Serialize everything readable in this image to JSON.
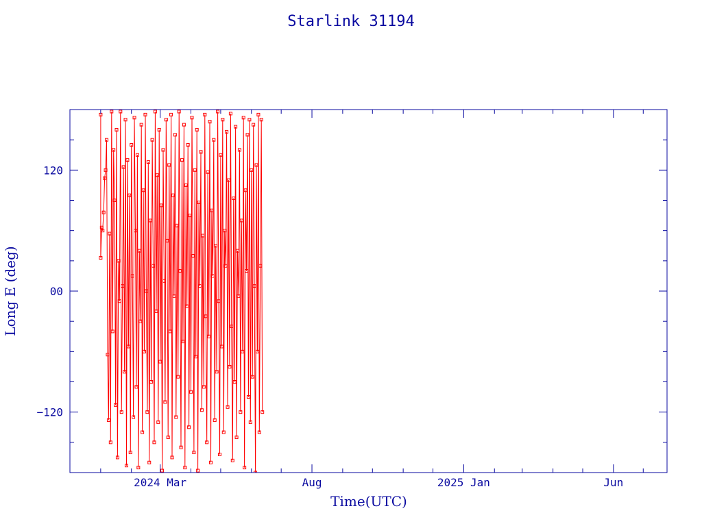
{
  "chart_data": {
    "type": "line",
    "title": "Starlink 31194",
    "xlabel": "Time(UTC)",
    "ylabel": "Long E (deg)",
    "x_ticks": [
      {
        "date": "2024-03-01",
        "label": "2024 Mar"
      },
      {
        "date": "2024-08-01",
        "label": "Aug"
      },
      {
        "date": "2025-01-01",
        "label": "2025 Jan"
      },
      {
        "date": "2025-06-01",
        "label": "Jun"
      }
    ],
    "y_ticks": [
      {
        "value": 120,
        "label": "120"
      },
      {
        "value": 0,
        "label": "00"
      },
      {
        "value": -120,
        "label": "−120"
      }
    ],
    "xlim": [
      "2023-12-01",
      "2025-07-25"
    ],
    "ylim": [
      -180,
      180
    ],
    "grid": false,
    "series": [
      {
        "marker": "square",
        "color": "#ff0000",
        "points": [
          {
            "x": "2024-01-01",
            "y": 175
          },
          {
            "x": "2024-01-01",
            "y": 33
          },
          {
            "x": "2024-01-02",
            "y": 63
          },
          {
            "x": "2024-01-03",
            "y": 60
          },
          {
            "x": "2024-01-04",
            "y": 78
          },
          {
            "x": "2024-01-05",
            "y": 112
          },
          {
            "x": "2024-01-06",
            "y": 120
          },
          {
            "x": "2024-01-07",
            "y": 150
          },
          {
            "x": "2024-01-08",
            "y": -63
          },
          {
            "x": "2024-01-09",
            "y": -128
          },
          {
            "x": "2024-01-10",
            "y": 57
          },
          {
            "x": "2024-01-11",
            "y": -150
          },
          {
            "x": "2024-01-12",
            "y": 178
          },
          {
            "x": "2024-01-13",
            "y": -40
          },
          {
            "x": "2024-01-14",
            "y": 140
          },
          {
            "x": "2024-01-15",
            "y": 90
          },
          {
            "x": "2024-01-16",
            "y": -113
          },
          {
            "x": "2024-01-17",
            "y": 160
          },
          {
            "x": "2024-01-18",
            "y": -165
          },
          {
            "x": "2024-01-19",
            "y": 30
          },
          {
            "x": "2024-01-20",
            "y": -10
          },
          {
            "x": "2024-01-21",
            "y": 178
          },
          {
            "x": "2024-01-22",
            "y": -120
          },
          {
            "x": "2024-01-23",
            "y": 5
          },
          {
            "x": "2024-01-24",
            "y": 123
          },
          {
            "x": "2024-01-25",
            "y": -80
          },
          {
            "x": "2024-01-26",
            "y": 170
          },
          {
            "x": "2024-01-27",
            "y": -173
          },
          {
            "x": "2024-01-28",
            "y": 130
          },
          {
            "x": "2024-01-29",
            "y": -55
          },
          {
            "x": "2024-01-30",
            "y": 95
          },
          {
            "x": "2024-01-31",
            "y": -160
          },
          {
            "x": "2024-02-01",
            "y": 145
          },
          {
            "x": "2024-02-02",
            "y": 15
          },
          {
            "x": "2024-02-03",
            "y": -125
          },
          {
            "x": "2024-02-04",
            "y": 172
          },
          {
            "x": "2024-02-05",
            "y": 60
          },
          {
            "x": "2024-02-06",
            "y": -95
          },
          {
            "x": "2024-02-07",
            "y": 135
          },
          {
            "x": "2024-02-08",
            "y": -175
          },
          {
            "x": "2024-02-09",
            "y": 40
          },
          {
            "x": "2024-02-10",
            "y": -30
          },
          {
            "x": "2024-02-11",
            "y": 165
          },
          {
            "x": "2024-02-12",
            "y": -140
          },
          {
            "x": "2024-02-13",
            "y": 100
          },
          {
            "x": "2024-02-14",
            "y": -60
          },
          {
            "x": "2024-02-15",
            "y": 175
          },
          {
            "x": "2024-02-16",
            "y": 0
          },
          {
            "x": "2024-02-17",
            "y": -120
          },
          {
            "x": "2024-02-18",
            "y": 128
          },
          {
            "x": "2024-02-19",
            "y": -170
          },
          {
            "x": "2024-02-20",
            "y": 70
          },
          {
            "x": "2024-02-21",
            "y": -90
          },
          {
            "x": "2024-02-22",
            "y": 150
          },
          {
            "x": "2024-02-23",
            "y": 25
          },
          {
            "x": "2024-02-24",
            "y": -150
          },
          {
            "x": "2024-02-25",
            "y": 178
          },
          {
            "x": "2024-02-26",
            "y": -20
          },
          {
            "x": "2024-02-27",
            "y": 115
          },
          {
            "x": "2024-02-28",
            "y": -130
          },
          {
            "x": "2024-02-29",
            "y": 160
          },
          {
            "x": "2024-03-01",
            "y": -70
          },
          {
            "x": "2024-03-02",
            "y": 85
          },
          {
            "x": "2024-03-03",
            "y": -178
          },
          {
            "x": "2024-03-04",
            "y": 140
          },
          {
            "x": "2024-03-05",
            "y": 10
          },
          {
            "x": "2024-03-06",
            "y": -110
          },
          {
            "x": "2024-03-07",
            "y": 170
          },
          {
            "x": "2024-03-08",
            "y": 50
          },
          {
            "x": "2024-03-09",
            "y": -145
          },
          {
            "x": "2024-03-10",
            "y": 125
          },
          {
            "x": "2024-03-11",
            "y": -40
          },
          {
            "x": "2024-03-12",
            "y": 175
          },
          {
            "x": "2024-03-13",
            "y": -165
          },
          {
            "x": "2024-03-14",
            "y": 95
          },
          {
            "x": "2024-03-15",
            "y": -5
          },
          {
            "x": "2024-03-16",
            "y": 155
          },
          {
            "x": "2024-03-17",
            "y": -125
          },
          {
            "x": "2024-03-18",
            "y": 65
          },
          {
            "x": "2024-03-19",
            "y": -85
          },
          {
            "x": "2024-03-20",
            "y": 178
          },
          {
            "x": "2024-03-21",
            "y": 20
          },
          {
            "x": "2024-03-22",
            "y": -155
          },
          {
            "x": "2024-03-23",
            "y": 130
          },
          {
            "x": "2024-03-24",
            "y": -50
          },
          {
            "x": "2024-03-25",
            "y": 165
          },
          {
            "x": "2024-03-26",
            "y": -175
          },
          {
            "x": "2024-03-27",
            "y": 105
          },
          {
            "x": "2024-03-28",
            "y": -15
          },
          {
            "x": "2024-03-29",
            "y": 145
          },
          {
            "x": "2024-03-30",
            "y": -135
          },
          {
            "x": "2024-03-31",
            "y": 75
          },
          {
            "x": "2024-04-01",
            "y": -100
          },
          {
            "x": "2024-04-02",
            "y": 172
          },
          {
            "x": "2024-04-03",
            "y": 35
          },
          {
            "x": "2024-04-04",
            "y": -160
          },
          {
            "x": "2024-04-05",
            "y": 120
          },
          {
            "x": "2024-04-06",
            "y": -65
          },
          {
            "x": "2024-04-07",
            "y": 160
          },
          {
            "x": "2024-04-08",
            "y": -178
          },
          {
            "x": "2024-04-09",
            "y": 88
          },
          {
            "x": "2024-04-10",
            "y": 5
          },
          {
            "x": "2024-04-11",
            "y": 138
          },
          {
            "x": "2024-04-12",
            "y": -118
          },
          {
            "x": "2024-04-13",
            "y": 55
          },
          {
            "x": "2024-04-14",
            "y": -95
          },
          {
            "x": "2024-04-15",
            "y": 175
          },
          {
            "x": "2024-04-16",
            "y": -25
          },
          {
            "x": "2024-04-17",
            "y": -150
          },
          {
            "x": "2024-04-18",
            "y": 118
          },
          {
            "x": "2024-04-19",
            "y": -45
          },
          {
            "x": "2024-04-20",
            "y": 168
          },
          {
            "x": "2024-04-21",
            "y": -170
          },
          {
            "x": "2024-04-22",
            "y": 80
          },
          {
            "x": "2024-04-23",
            "y": 15
          },
          {
            "x": "2024-04-24",
            "y": 150
          },
          {
            "x": "2024-04-25",
            "y": -128
          },
          {
            "x": "2024-04-26",
            "y": 45
          },
          {
            "x": "2024-04-27",
            "y": -80
          },
          {
            "x": "2024-04-28",
            "y": 178
          },
          {
            "x": "2024-04-29",
            "y": -10
          },
          {
            "x": "2024-04-30",
            "y": -162
          },
          {
            "x": "2024-05-01",
            "y": 135
          },
          {
            "x": "2024-05-02",
            "y": -55
          },
          {
            "x": "2024-05-03",
            "y": 170
          },
          {
            "x": "2024-05-04",
            "y": -140
          },
          {
            "x": "2024-05-05",
            "y": 60
          },
          {
            "x": "2024-05-06",
            "y": 25
          },
          {
            "x": "2024-05-07",
            "y": 158
          },
          {
            "x": "2024-05-08",
            "y": -115
          },
          {
            "x": "2024-05-09",
            "y": 110
          },
          {
            "x": "2024-05-10",
            "y": -75
          },
          {
            "x": "2024-05-11",
            "y": 176
          },
          {
            "x": "2024-05-12",
            "y": -35
          },
          {
            "x": "2024-05-13",
            "y": -168
          },
          {
            "x": "2024-05-14",
            "y": 92
          },
          {
            "x": "2024-05-15",
            "y": -90
          },
          {
            "x": "2024-05-16",
            "y": 163
          },
          {
            "x": "2024-05-17",
            "y": -145
          },
          {
            "x": "2024-05-18",
            "y": 40
          },
          {
            "x": "2024-05-19",
            "y": -5
          },
          {
            "x": "2024-05-20",
            "y": 140
          },
          {
            "x": "2024-05-21",
            "y": -120
          },
          {
            "x": "2024-05-22",
            "y": 70
          },
          {
            "x": "2024-05-23",
            "y": -60
          },
          {
            "x": "2024-05-24",
            "y": 172
          },
          {
            "x": "2024-05-25",
            "y": -175
          },
          {
            "x": "2024-05-26",
            "y": 100
          },
          {
            "x": "2024-05-27",
            "y": 20
          },
          {
            "x": "2024-05-28",
            "y": 155
          },
          {
            "x": "2024-05-29",
            "y": -105
          },
          {
            "x": "2024-05-30",
            "y": 170
          },
          {
            "x": "2024-05-31",
            "y": -130
          },
          {
            "x": "2024-06-01",
            "y": 120
          },
          {
            "x": "2024-06-02",
            "y": -85
          },
          {
            "x": "2024-06-03",
            "y": 165
          },
          {
            "x": "2024-06-04",
            "y": 5
          },
          {
            "x": "2024-06-05",
            "y": -180
          },
          {
            "x": "2024-06-06",
            "y": 125
          },
          {
            "x": "2024-06-07",
            "y": -60
          },
          {
            "x": "2024-06-08",
            "y": 175
          },
          {
            "x": "2024-06-09",
            "y": -140
          },
          {
            "x": "2024-06-10",
            "y": 25
          },
          {
            "x": "2024-06-11",
            "y": 170
          },
          {
            "x": "2024-06-12",
            "y": -120
          }
        ]
      }
    ]
  }
}
